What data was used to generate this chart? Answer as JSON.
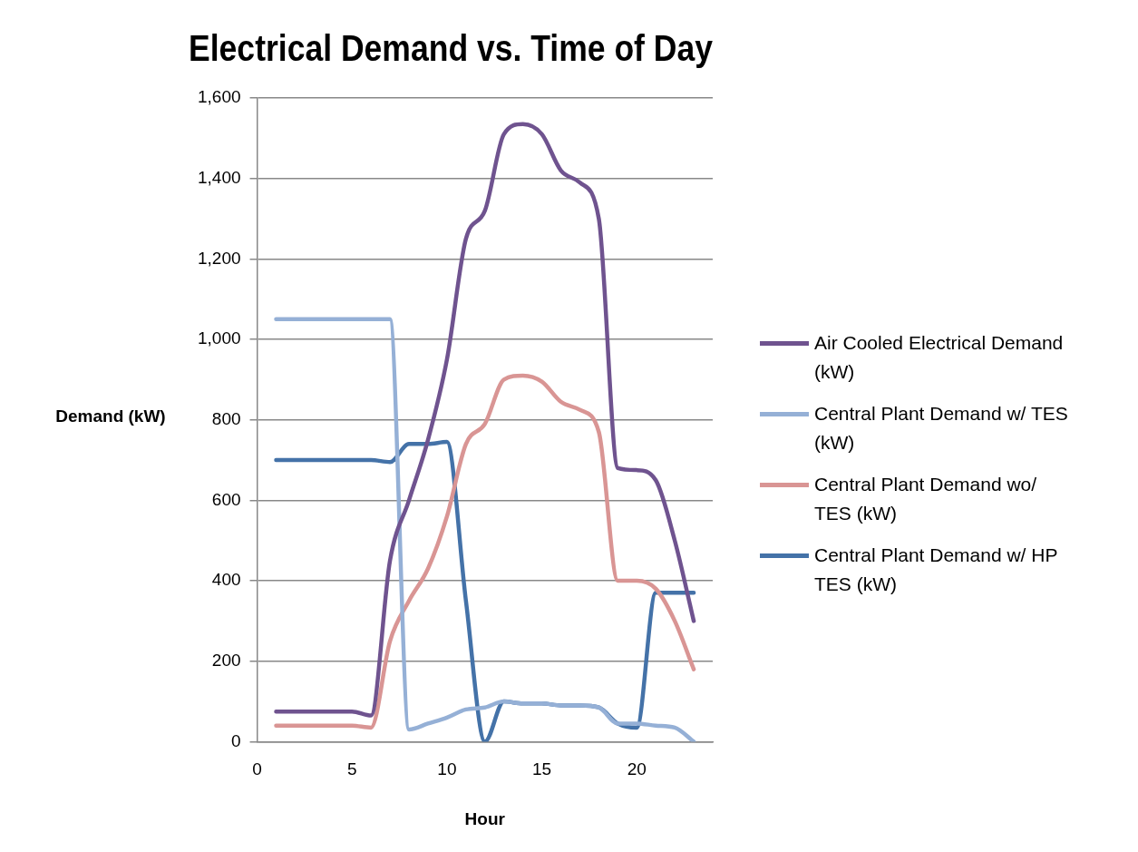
{
  "chart_data": {
    "type": "line",
    "title": "Electrical Demand vs. Time of Day",
    "xlabel": "Hour",
    "ylabel": "Demand (kW)",
    "x": [
      1,
      2,
      3,
      4,
      5,
      6,
      7,
      8,
      9,
      10,
      11,
      12,
      13,
      14,
      15,
      16,
      17,
      18,
      19,
      20,
      21,
      22,
      23
    ],
    "xlim": [
      0,
      24
    ],
    "xticks": [
      0,
      5,
      10,
      15,
      20
    ],
    "ylim": [
      0,
      1600
    ],
    "yticks": [
      {
        "value": 0,
        "label": "0"
      },
      {
        "value": 200,
        "label": "200"
      },
      {
        "value": 400,
        "label": "400"
      },
      {
        "value": 600,
        "label": "600"
      },
      {
        "value": 800,
        "label": "800"
      },
      {
        "value": 1000,
        "label": "1,000"
      },
      {
        "value": 1200,
        "label": "1,200"
      },
      {
        "value": 1400,
        "label": "1,400"
      },
      {
        "value": 1600,
        "label": "1,600"
      }
    ],
    "grid": "y",
    "legend": "right",
    "marker": "none",
    "line_style": "solid",
    "series": [
      {
        "name": "Air Cooled Electrical Demand (kW)",
        "color": "#6f538f",
        "values": [
          75,
          75,
          75,
          75,
          75,
          65,
          450,
          600,
          750,
          950,
          1250,
          1320,
          1510,
          1535,
          1510,
          1420,
          1390,
          1300,
          680,
          675,
          650,
          500,
          300
        ]
      },
      {
        "name": "Central Plant Demand w/ TES (kW)",
        "color": "#95b0d6",
        "values": [
          1050,
          1050,
          1050,
          1050,
          1050,
          1050,
          1050,
          30,
          45,
          60,
          80,
          85,
          100,
          95,
          95,
          90,
          90,
          85,
          45,
          45,
          40,
          35,
          0
        ]
      },
      {
        "name": "Central Plant Demand wo/ TES (kW)",
        "color": "#d99594",
        "values": [
          40,
          40,
          40,
          40,
          40,
          35,
          250,
          350,
          430,
          560,
          740,
          790,
          900,
          910,
          895,
          845,
          825,
          770,
          400,
          400,
          380,
          300,
          180
        ]
      },
      {
        "name": "Central Plant Demand w/ HP TES (kW)",
        "color": "#4472a8",
        "values": [
          700,
          700,
          700,
          700,
          700,
          700,
          695,
          740,
          740,
          745,
          350,
          0,
          100,
          95,
          95,
          90,
          90,
          85,
          45,
          35,
          370,
          370,
          370
        ]
      }
    ]
  }
}
